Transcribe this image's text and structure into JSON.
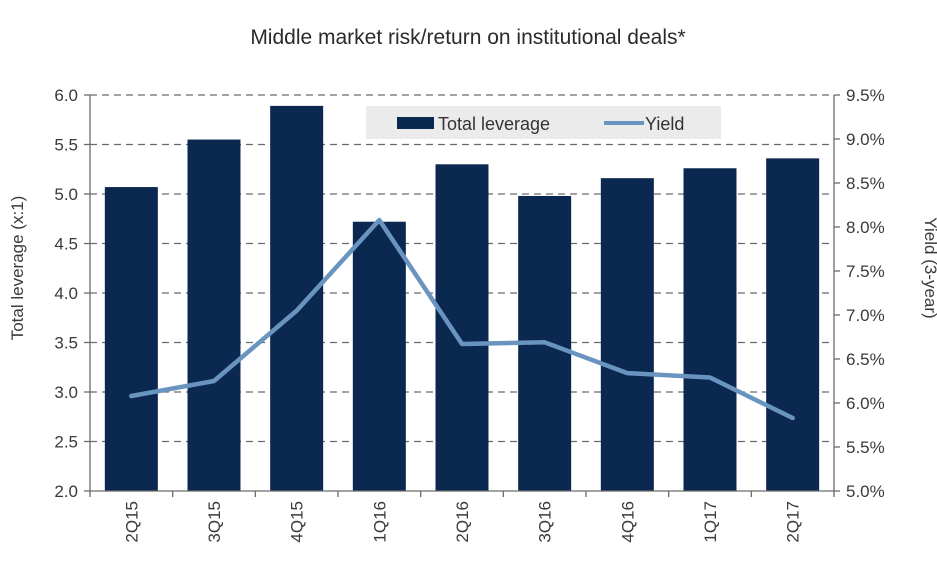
{
  "chart_data": {
    "type": "bar",
    "title": "Middle market risk/return on institutional deals*",
    "categories": [
      "2Q15",
      "3Q15",
      "4Q15",
      "1Q16",
      "2Q16",
      "3Q16",
      "4Q16",
      "1Q17",
      "2Q17"
    ],
    "series": [
      {
        "name": "Total leverage",
        "type": "bar",
        "axis": "left",
        "color": "#0b2850",
        "values": [
          5.07,
          5.55,
          5.89,
          4.72,
          5.3,
          4.98,
          5.16,
          5.26,
          5.36
        ]
      },
      {
        "name": "Yield",
        "type": "line",
        "axis": "right",
        "color": "#6a94c0",
        "values": [
          6.08,
          6.25,
          7.05,
          8.08,
          6.67,
          6.69,
          6.34,
          6.29,
          5.83
        ]
      }
    ],
    "ylabel": "Total leverage (x:1)",
    "y2label": "Yield (3-year)",
    "xlabel": "",
    "ylim": [
      2.0,
      6.0
    ],
    "y2lim": [
      5.0,
      9.5
    ],
    "yticks": [
      "2.0",
      "2.5",
      "3.0",
      "3.5",
      "4.0",
      "4.5",
      "5.0",
      "5.5",
      "6.0"
    ],
    "y2ticks": [
      "5.0%",
      "5.5%",
      "6.0%",
      "6.5%",
      "7.0%",
      "7.5%",
      "8.0%",
      "8.5%",
      "9.0%",
      "9.5%"
    ],
    "grid": true,
    "legend": "top-center"
  }
}
